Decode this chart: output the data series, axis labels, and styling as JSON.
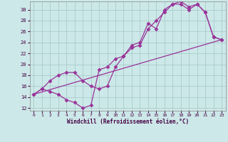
{
  "xlabel": "Windchill (Refroidissement éolien,°C)",
  "bg_color": "#cce8e8",
  "grid_color": "#aacccc",
  "line_color": "#993399",
  "xlim": [
    -0.5,
    23.5
  ],
  "ylim": [
    11.5,
    31.5
  ],
  "xticks": [
    0,
    1,
    2,
    3,
    4,
    5,
    6,
    7,
    8,
    9,
    10,
    11,
    12,
    13,
    14,
    15,
    16,
    17,
    18,
    19,
    20,
    21,
    22,
    23
  ],
  "yticks": [
    12,
    14,
    16,
    18,
    20,
    22,
    24,
    26,
    28,
    30
  ],
  "line1_x": [
    0,
    1,
    2,
    3,
    4,
    5,
    6,
    7,
    8,
    9,
    10,
    11,
    12,
    13,
    14,
    15,
    16,
    17,
    18,
    19,
    20,
    21,
    22,
    23
  ],
  "line1_y": [
    14.5,
    15.5,
    15.0,
    14.5,
    13.5,
    13.0,
    12.0,
    12.5,
    19.0,
    19.5,
    21.0,
    21.5,
    23.5,
    24.0,
    27.5,
    26.5,
    30.0,
    31.0,
    31.0,
    30.0,
    31.0,
    29.5,
    25.0,
    24.5
  ],
  "line2_x": [
    0,
    1,
    2,
    3,
    4,
    5,
    6,
    7,
    8,
    9,
    10,
    11,
    12,
    13,
    14,
    15,
    16,
    17,
    18,
    19,
    20,
    21,
    22,
    23
  ],
  "line2_y": [
    14.5,
    15.5,
    17.0,
    18.0,
    18.5,
    18.5,
    17.0,
    16.0,
    15.5,
    16.0,
    19.5,
    21.5,
    23.0,
    23.5,
    26.5,
    28.0,
    29.5,
    31.0,
    31.5,
    30.5,
    31.0,
    29.5,
    25.0,
    24.5
  ],
  "line3_x": [
    0,
    23
  ],
  "line3_y": [
    14.5,
    24.5
  ]
}
